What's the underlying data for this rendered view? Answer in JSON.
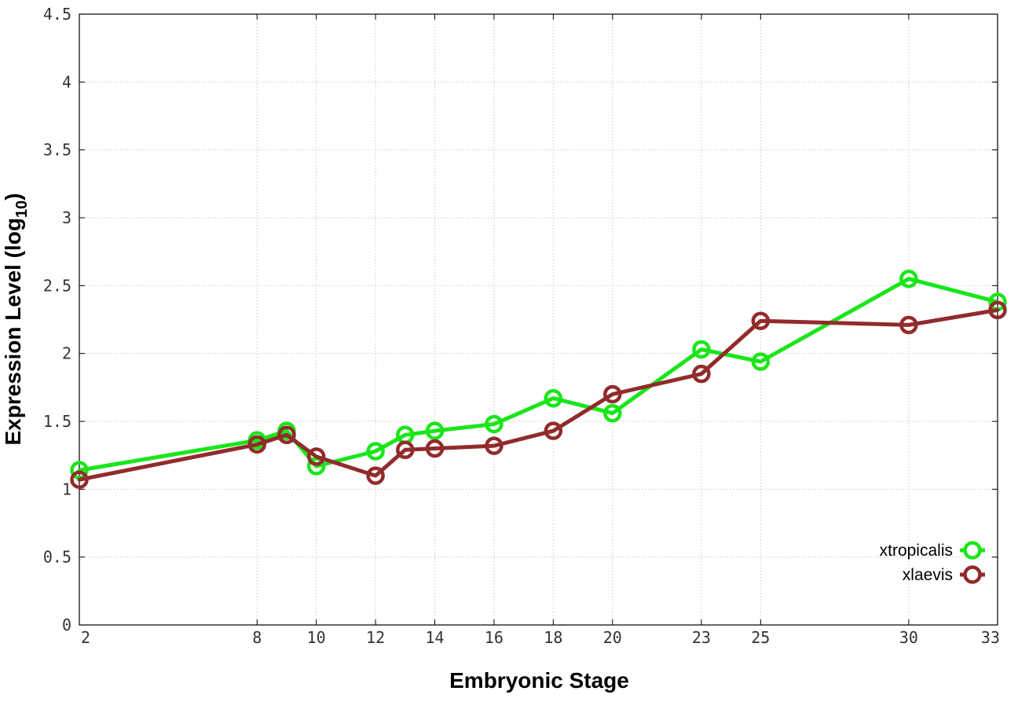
{
  "chart_data": {
    "type": "line",
    "title": "",
    "xlabel": "Embryonic Stage",
    "ylabel": "Expression Level (log",
    "ylabel_subscript": "10",
    "ylabel_suffix": ")",
    "x": [
      2,
      8,
      9,
      10,
      12,
      13,
      14,
      16,
      18,
      20,
      23,
      25,
      30,
      33
    ],
    "x_ticks": [
      "2",
      "8",
      "10",
      "12",
      "14",
      "16",
      "18",
      "20",
      "23",
      "25",
      "30",
      "33"
    ],
    "y_ticks": [
      "0",
      "0.5",
      "1",
      "1.5",
      "2",
      "2.5",
      "3",
      "3.5",
      "4",
      "4.5"
    ],
    "xlim": [
      2,
      33
    ],
    "ylim": [
      0,
      4.5
    ],
    "grid": true,
    "legend_position": "bottom-right",
    "series": [
      {
        "name": "xtropicalis",
        "color": "#19e619",
        "values": [
          1.14,
          1.36,
          1.43,
          1.17,
          1.28,
          1.4,
          1.43,
          1.48,
          1.67,
          1.56,
          2.03,
          1.94,
          2.55,
          2.38
        ]
      },
      {
        "name": "xlaevis",
        "color": "#922b2b",
        "values": [
          1.07,
          1.33,
          1.4,
          1.24,
          1.1,
          1.29,
          1.3,
          1.32,
          1.43,
          1.7,
          1.85,
          2.24,
          2.21,
          2.32
        ]
      }
    ]
  }
}
